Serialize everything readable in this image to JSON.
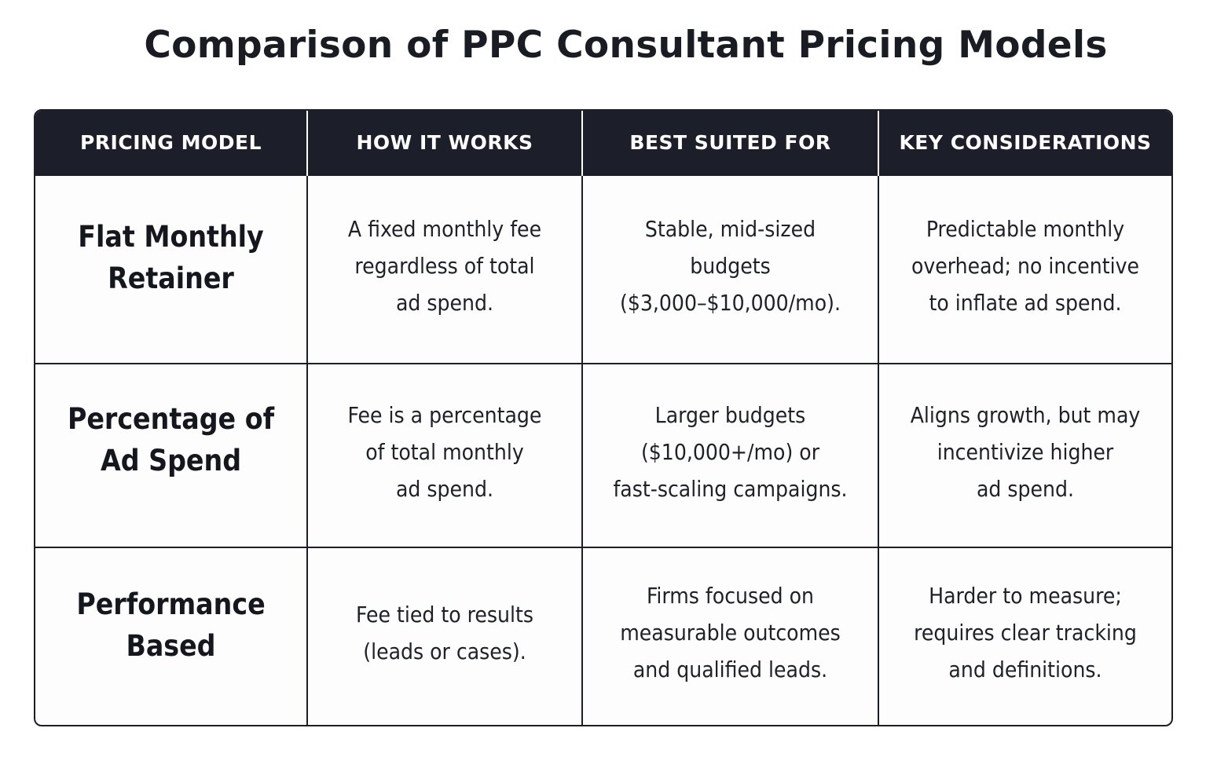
{
  "title": "Comparison of PPC Consultant Pricing Models",
  "table": {
    "headers": [
      "PRICING MODEL",
      "HOW IT WORKS",
      "BEST SUITED FOR",
      "KEY CONSIDERATIONS"
    ],
    "rows": [
      {
        "model": [
          "Flat Monthly",
          "Retainer"
        ],
        "how_it_works": [
          "A fixed monthly fee",
          "regardless of total",
          "ad spend."
        ],
        "best_suited_for": [
          "Stable, mid-sized",
          "budgets",
          "($3,000–$10,000/mo)."
        ],
        "key_considerations": [
          "Predictable monthly",
          "overhead; no incentive",
          "to inflate ad spend."
        ]
      },
      {
        "model": [
          "Percentage of",
          "Ad Spend"
        ],
        "how_it_works": [
          "Fee is a percentage",
          "of total monthly",
          "ad spend."
        ],
        "best_suited_for": [
          "Larger budgets",
          "($10,000+/mo) or",
          "fast-scaling campaigns."
        ],
        "key_considerations": [
          "Aligns growth, but may",
          "incentivize higher",
          "ad spend."
        ]
      },
      {
        "model": [
          "Performance",
          "Based"
        ],
        "how_it_works": [
          "Fee tied to results",
          "(leads or cases)."
        ],
        "best_suited_for": [
          "Firms focused on",
          "measurable outcomes",
          "and qualified leads."
        ],
        "key_considerations": [
          "Harder to measure;",
          "requires clear tracking",
          "and definitions."
        ]
      }
    ]
  }
}
